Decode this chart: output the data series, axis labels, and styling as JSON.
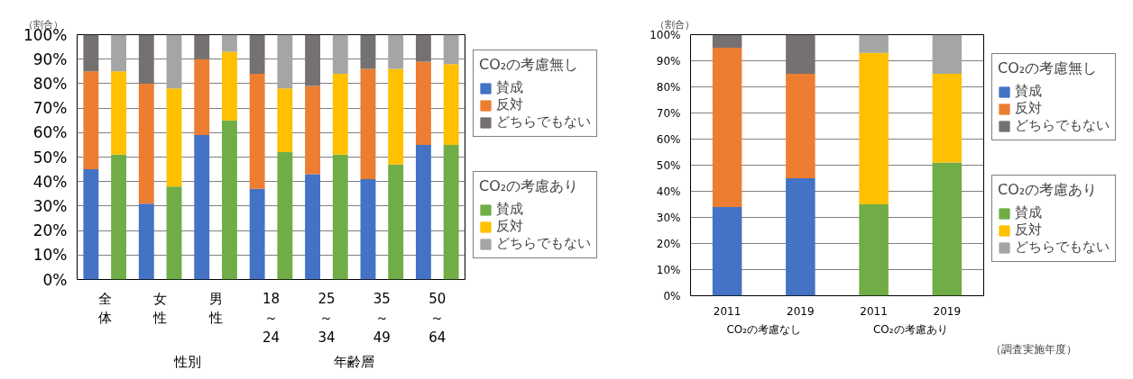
{
  "chart_data": [
    {
      "type": "bar",
      "stacked": true,
      "ylabel": "（割合）",
      "categories": [
        "全体",
        null,
        "女性",
        null,
        "男性",
        null,
        "18～24",
        null,
        "25～34",
        null,
        "35～49",
        null,
        "50～64",
        null
      ],
      "annotations": [
        "性別",
        "年齢層"
      ],
      "ylim": [
        0,
        100
      ],
      "yticks": [
        {
          "value": 0,
          "label": "0%"
        },
        {
          "value": 10,
          "label": "10%"
        },
        {
          "value": 20,
          "label": "20%"
        },
        {
          "value": 30,
          "label": "30%"
        },
        {
          "value": 40,
          "label": "40%"
        },
        {
          "value": 50,
          "label": "50%"
        },
        {
          "value": 60,
          "label": "60%"
        },
        {
          "value": 70,
          "label": "70%"
        },
        {
          "value": 80,
          "label": "80%"
        },
        {
          "value": 90,
          "label": "90%"
        },
        {
          "value": 100,
          "label": "100%"
        }
      ],
      "grid": "y",
      "legend": "right",
      "legend_title": [
        "CO₂の考慮無し",
        "CO₂の考慮あり"
      ],
      "series": [
        {
          "name": "賛成",
          "color": "#4472c4",
          "values": [
            45,
            null,
            31,
            null,
            59,
            null,
            37,
            null,
            43,
            null,
            41,
            null,
            55,
            null
          ]
        },
        {
          "name": "反対",
          "color": "#ed7d31",
          "values": [
            40,
            null,
            49,
            null,
            31,
            null,
            47,
            null,
            36,
            null,
            45,
            null,
            34,
            null
          ]
        },
        {
          "name": "どちらでもない",
          "color": "#767171",
          "values": [
            15,
            null,
            20,
            null,
            10,
            null,
            16,
            null,
            21,
            null,
            14,
            null,
            11,
            null
          ]
        },
        {
          "name": "賛成",
          "color": "#70ad47",
          "values": [
            null,
            51,
            null,
            38,
            null,
            65,
            null,
            52,
            null,
            51,
            null,
            47,
            null,
            55
          ]
        },
        {
          "name": "反対",
          "color": "#ffc000",
          "values": [
            null,
            34,
            null,
            40,
            null,
            28,
            null,
            26,
            null,
            33,
            null,
            39,
            null,
            33
          ]
        },
        {
          "name": "どちらでもない",
          "color": "#a5a5a5",
          "values": [
            null,
            15,
            null,
            22,
            null,
            7,
            null,
            22,
            null,
            16,
            null,
            14,
            null,
            12
          ]
        }
      ]
    },
    {
      "type": "bar",
      "stacked": true,
      "ylabel": "（割合）",
      "xlabel": "（調査実施年度）",
      "categories": [
        "2011",
        "2019",
        "2011",
        "2019"
      ],
      "annotations": [
        "CO₂の考慮なし",
        "CO₂の考慮あり"
      ],
      "ylim": [
        0,
        100
      ],
      "yticks": [
        {
          "value": 0,
          "label": "0%"
        },
        {
          "value": 10,
          "label": "10%"
        },
        {
          "value": 20,
          "label": "20%"
        },
        {
          "value": 30,
          "label": "30%"
        },
        {
          "value": 40,
          "label": "40%"
        },
        {
          "value": 50,
          "label": "50%"
        },
        {
          "value": 60,
          "label": "60%"
        },
        {
          "value": 70,
          "label": "70%"
        },
        {
          "value": 80,
          "label": "80%"
        },
        {
          "value": 90,
          "label": "90%"
        },
        {
          "value": 100,
          "label": "100%"
        }
      ],
      "grid": "y",
      "legend": "right",
      "legend_title": [
        "CO₂の考慮無し",
        "CO₂の考慮あり"
      ],
      "series": [
        {
          "name": "賛成",
          "color": "#4472c4",
          "values": [
            34,
            45,
            null,
            null
          ]
        },
        {
          "name": "反対",
          "color": "#ed7d31",
          "values": [
            61,
            40,
            null,
            null
          ]
        },
        {
          "name": "どちらでもない",
          "color": "#767171",
          "values": [
            5,
            15,
            null,
            null
          ]
        },
        {
          "name": "賛成",
          "color": "#70ad47",
          "values": [
            null,
            null,
            35,
            51
          ]
        },
        {
          "name": "反対",
          "color": "#ffc000",
          "values": [
            null,
            null,
            58,
            34
          ]
        },
        {
          "name": "どちらでもない",
          "color": "#a5a5a5",
          "values": [
            null,
            null,
            7,
            15
          ]
        }
      ]
    }
  ]
}
